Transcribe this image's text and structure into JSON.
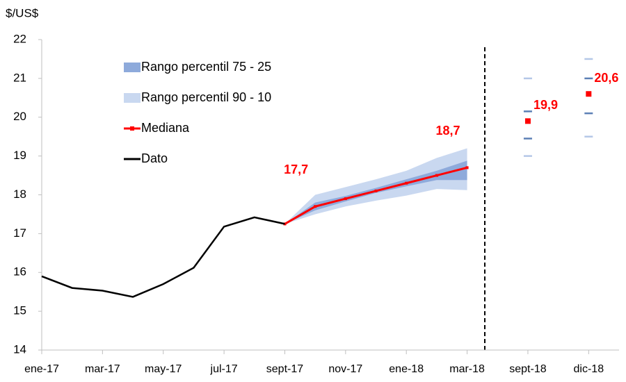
{
  "chart_data": {
    "type": "line",
    "y_label": "$/US$",
    "categories": [
      "ene-17",
      null,
      "mar-17",
      null,
      "may-17",
      null,
      "jul-17",
      null,
      "sept-17",
      null,
      "nov-17",
      null,
      "ene-18",
      null,
      "mar-18",
      null,
      "sept-18",
      null,
      "dic-18"
    ],
    "ylim": [
      14,
      22
    ],
    "yticks": [
      14,
      15,
      16,
      17,
      18,
      19,
      20,
      21,
      22
    ],
    "grid": false,
    "legend": "upper left",
    "bands": [
      {
        "name": "Rango percentil 90 - 10",
        "color": "#c9d8f0",
        "dash_color": "#b4c7e7",
        "lower": [
          null,
          null,
          null,
          null,
          null,
          null,
          null,
          null,
          17.25,
          17.5,
          17.7,
          17.85,
          17.98,
          18.15,
          18.12,
          null,
          19.0,
          null,
          19.5
        ],
        "upper": [
          null,
          null,
          null,
          null,
          null,
          null,
          null,
          null,
          17.25,
          18.0,
          18.2,
          18.4,
          18.62,
          18.95,
          19.2,
          null,
          21.0,
          null,
          21.5
        ]
      },
      {
        "name": "Rango percentil 75 - 25",
        "color": "#8eaadb",
        "dash_color": "#5b7fb5",
        "lower": [
          null,
          null,
          null,
          null,
          null,
          null,
          null,
          null,
          17.25,
          17.6,
          17.83,
          18.05,
          18.22,
          18.38,
          18.38,
          null,
          19.45,
          null,
          20.1
        ],
        "upper": [
          null,
          null,
          null,
          null,
          null,
          null,
          null,
          null,
          17.25,
          17.8,
          17.97,
          18.18,
          18.4,
          18.62,
          18.88,
          null,
          20.15,
          null,
          21.0
        ]
      }
    ],
    "series": [
      {
        "name": "Mediana",
        "color": "#ff0000",
        "values": [
          null,
          null,
          null,
          null,
          null,
          null,
          null,
          null,
          17.25,
          17.7,
          17.9,
          18.1,
          18.3,
          18.5,
          18.7,
          null,
          19.9,
          null,
          20.6
        ],
        "value_labels": [
          null,
          null,
          null,
          null,
          null,
          null,
          null,
          null,
          null,
          "17,7",
          null,
          null,
          null,
          null,
          "18,7",
          null,
          "19,9",
          null,
          "20,6"
        ]
      },
      {
        "name": "Dato",
        "color": "#000000",
        "values": [
          15.9,
          15.6,
          15.53,
          15.37,
          15.7,
          16.12,
          17.18,
          17.42,
          17.25,
          null,
          null,
          null,
          null,
          null,
          null,
          null,
          null,
          null,
          null
        ]
      }
    ]
  }
}
